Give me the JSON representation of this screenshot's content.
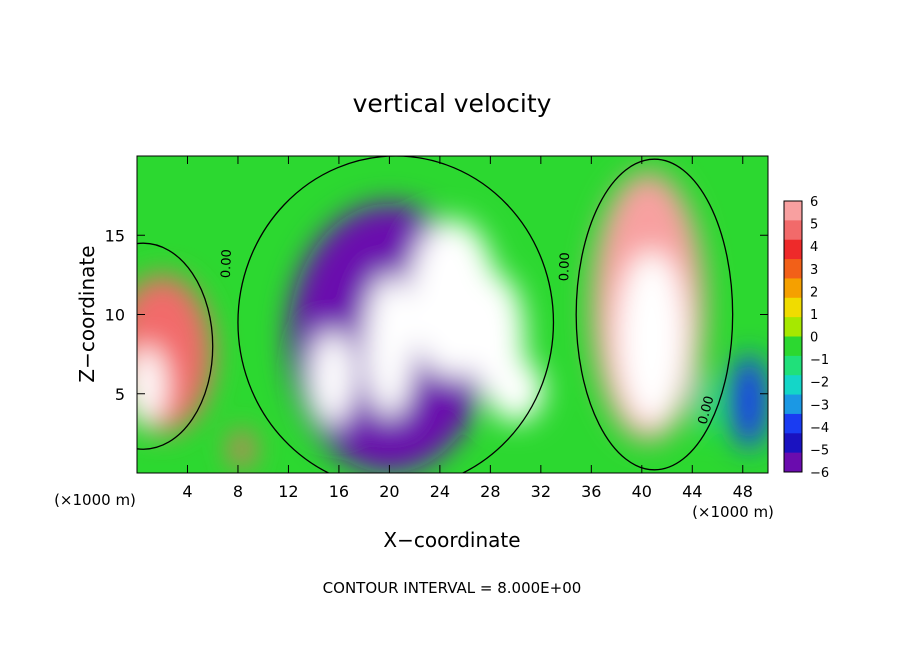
{
  "chart_data": {
    "type": "heatmap",
    "title": "vertical velocity",
    "xlabel": "X−coordinate",
    "ylabel": "Z−coordinate",
    "x_unit_left": "(×1000 m)",
    "x_unit_right": "(×1000 m)",
    "footer": "CONTOUR INTERVAL = 8.000E+00",
    "xlim": [
      0,
      50
    ],
    "ylim": [
      0,
      20
    ],
    "x_ticks": [
      4,
      8,
      12,
      16,
      20,
      24,
      28,
      32,
      36,
      40,
      44,
      48
    ],
    "y_ticks": [
      5,
      10,
      15
    ],
    "x_tick_labels": [
      "4",
      "8",
      "12",
      "16",
      "20",
      "24",
      "28",
      "32",
      "36",
      "40",
      "44",
      "48"
    ],
    "y_tick_labels": [
      "5",
      "10",
      "15"
    ],
    "colorbar": {
      "min": -6,
      "max": 6,
      "tick_labels": [
        "6",
        "5",
        "4",
        "3",
        "2",
        "1",
        "0",
        "−1",
        "−2",
        "−3",
        "−4",
        "−5",
        "−6"
      ],
      "colors": [
        "#f8a0a0",
        "#f26a6a",
        "#ee2a2a",
        "#f26018",
        "#f5a000",
        "#f0dc00",
        "#a6e800",
        "#2cd830",
        "#20e07a",
        "#14d6c8",
        "#1b98e4",
        "#1a3cf2",
        "#1a12c0",
        "#6a0cae"
      ]
    },
    "contour_labels": [
      {
        "text": "0.00",
        "x": 7.4,
        "z": 13.2,
        "angle": -88
      },
      {
        "text": "0.00",
        "x": 34.2,
        "z": 13.0,
        "angle": -88
      },
      {
        "text": "0.00",
        "x": 45.4,
        "z": 3.9,
        "angle": -75
      }
    ],
    "features": [
      {
        "x": 20.0,
        "z": 8.5,
        "rx": 8.0,
        "rz": 8.5,
        "value": -5.2
      },
      {
        "x": 25.0,
        "z": 11.0,
        "rx": 3.5,
        "rz": 5.0,
        "value": -9.0
      },
      {
        "x": 20.0,
        "z": 8.0,
        "rx": 2.0,
        "rz": 4.5,
        "value": -8.0
      },
      {
        "x": 28.5,
        "z": 8.5,
        "rx": 2.2,
        "rz": 4.0,
        "value": -8.0
      },
      {
        "x": 15.5,
        "z": 6.0,
        "rx": 1.8,
        "rz": 3.0,
        "value": -7.0
      },
      {
        "x": 30.0,
        "z": 5.2,
        "rx": 2.2,
        "rz": 2.0,
        "value": -7.5
      },
      {
        "x": 40.5,
        "z": 10.5,
        "rx": 4.5,
        "rz": 8.5,
        "value": 6.0
      },
      {
        "x": 40.8,
        "z": 8.5,
        "rx": 2.8,
        "rz": 5.5,
        "value": 9.0
      },
      {
        "x": 2.0,
        "z": 7.5,
        "rx": 4.0,
        "rz": 5.0,
        "value": 5.0
      },
      {
        "x": 0.8,
        "z": 5.5,
        "rx": 1.5,
        "rz": 2.5,
        "value": 8.0
      },
      {
        "x": 8.3,
        "z": 1.5,
        "rx": 0.9,
        "rz": 1.2,
        "value": 5.0
      },
      {
        "x": 48.5,
        "z": 4.5,
        "rx": 1.5,
        "rz": 3.0,
        "value": -4.0
      },
      {
        "x": 45.0,
        "z": 4.5,
        "rx": 0.6,
        "rz": 2.0,
        "value": -2.5
      }
    ]
  }
}
